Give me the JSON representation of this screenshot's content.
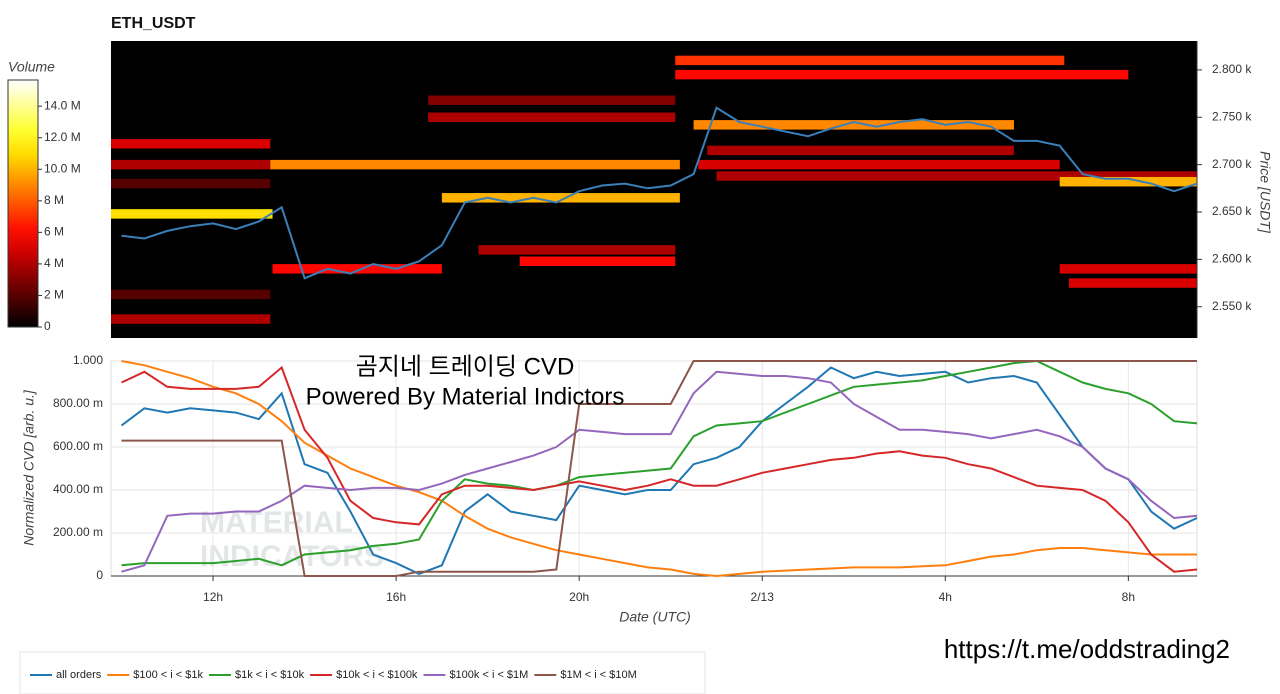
{
  "chart_data": [
    {
      "type": "heatmap",
      "title": "ETH_USDT",
      "y_label": "Price [USDT]",
      "xlim": [
        9.77,
        33.5
      ],
      "ylim": [
        2517,
        2830.5
      ],
      "yticks": [
        {
          "value": 2550,
          "label": "2.550 k"
        },
        {
          "value": 2600,
          "label": "2.600 k"
        },
        {
          "value": 2650,
          "label": "2.650 k"
        },
        {
          "value": 2700,
          "label": "2.700 k"
        },
        {
          "value": 2750,
          "label": "2.750 k"
        },
        {
          "value": 2800,
          "label": "2.800 k"
        }
      ],
      "colorbar": {
        "title": "Volume",
        "lim": [
          0,
          15660000
        ],
        "ticks": [
          0,
          {
            "value": 2000000,
            "label": "2 M"
          },
          {
            "value": 4000000,
            "label": "4 M"
          },
          {
            "value": 6000000,
            "label": "6 M"
          },
          {
            "value": 8000000,
            "label": "8 M"
          },
          {
            "value": 10000000,
            "label": "10.0 M"
          },
          {
            "value": 12000000,
            "label": "12.0 M"
          },
          {
            "value": 14000000,
            "label": "14.0 M"
          }
        ]
      },
      "cells": [
        [
          9.77,
          13.25,
          2722,
          5000000
        ],
        [
          9.77,
          13.25,
          2700,
          4000000
        ],
        [
          13.25,
          22.2,
          2700,
          9000000
        ],
        [
          22.6,
          30.5,
          2700,
          5000000
        ],
        [
          16.7,
          22.1,
          2750,
          4000000
        ],
        [
          22.1,
          30.6,
          2810,
          7000000
        ],
        [
          22.1,
          32.0,
          2795,
          6000000
        ],
        [
          16.7,
          22.1,
          2768,
          3000000
        ],
        [
          17.8,
          22.1,
          2610,
          4000000
        ],
        [
          18.7,
          22.1,
          2598,
          6000000
        ],
        [
          9.77,
          13.25,
          2680,
          2000000
        ],
        [
          9.77,
          13.25,
          2537,
          4000000
        ],
        [
          9.77,
          13.25,
          2563,
          2000000
        ],
        [
          30.5,
          33.5,
          2590,
          5000000
        ],
        [
          30.7,
          33.5,
          2575,
          5000000
        ],
        [
          22.8,
          29.5,
          2715,
          4000000
        ],
        [
          23.0,
          33.5,
          2688,
          4000000
        ],
        [
          9.77,
          13.3,
          2648,
          11000000
        ],
        [
          13.3,
          17.0,
          2590,
          6000000
        ],
        [
          17.0,
          22.2,
          2665,
          10000000
        ],
        [
          22.5,
          29.5,
          2742,
          9000000
        ],
        [
          30.5,
          33.5,
          2682,
          10000000
        ]
      ],
      "x": [
        10,
        10.5,
        11,
        11.5,
        12,
        12.5,
        13,
        13.5,
        14,
        14.5,
        15,
        15.5,
        16,
        16.5,
        17,
        17.5,
        18,
        18.5,
        19,
        19.5,
        20,
        20.5,
        21,
        21.5,
        22,
        22.5,
        23,
        23.5,
        24,
        24.5,
        25,
        25.5,
        26,
        26.5,
        27,
        27.5,
        28,
        28.5,
        29,
        29.5,
        30,
        30.5,
        31,
        31.5,
        32,
        32.5,
        33,
        33.5
      ],
      "color": "#3a7fb8",
      "values": [
        2625,
        2622,
        2630,
        2635,
        2638,
        2632,
        2640,
        2655,
        2580,
        2590,
        2585,
        2595,
        2590,
        2598,
        2615,
        2660,
        2665,
        2660,
        2665,
        2660,
        2672,
        2678,
        2680,
        2675,
        2678,
        2690,
        2760,
        2745,
        2740,
        2735,
        2730,
        2738,
        2745,
        2740,
        2745,
        2748,
        2742,
        2745,
        2740,
        2725,
        2725,
        2720,
        2690,
        2685,
        2685,
        2680,
        2672,
        2680
      ]
    },
    {
      "type": "line",
      "x_label": "Date (UTC)",
      "y_label": "Normalized CVD [arb. u.]",
      "annotations": [
        "곰지네 트레이딩 CVD",
        "Powered By Material Indictors"
      ],
      "watermark": [
        "MATERIAL",
        "INDICATORS"
      ],
      "source": "https://t.me/oddstrading2",
      "grid": true,
      "xlim": [
        9.77,
        33.5
      ],
      "ylim": [
        0,
        1
      ],
      "xticks": [
        {
          "value": 12,
          "label": "12h"
        },
        {
          "value": 16,
          "label": "16h"
        },
        {
          "value": 20,
          "label": "20h"
        },
        {
          "value": 24,
          "label": "2/13"
        },
        {
          "value": 28,
          "label": "4h"
        },
        {
          "value": 32,
          "label": "8h"
        }
      ],
      "yticks": [
        0,
        {
          "value": 0.2,
          "label": "200.00 m"
        },
        {
          "value": 0.4,
          "label": "400.00 m"
        },
        {
          "value": 0.6,
          "label": "600.00 m"
        },
        {
          "value": 0.8,
          "label": "800.00 m"
        },
        {
          "value": 1,
          "label": "1.000"
        }
      ],
      "x": [
        10,
        10.5,
        11,
        11.5,
        12,
        12.5,
        13,
        13.5,
        14,
        14.5,
        15,
        15.5,
        16,
        16.5,
        17,
        17.5,
        18,
        18.5,
        19,
        19.5,
        20,
        20.5,
        21,
        21.5,
        22,
        22.5,
        23,
        23.5,
        24,
        24.5,
        25,
        25.5,
        26,
        26.5,
        27,
        27.5,
        28,
        28.5,
        29,
        29.5,
        30,
        30.5,
        31,
        31.5,
        32,
        32.5,
        33,
        33.5
      ],
      "series": [
        {
          "name": "all orders",
          "color": "#1f77b4",
          "values": [
            0.7,
            0.78,
            0.76,
            0.78,
            0.77,
            0.76,
            0.73,
            0.85,
            0.52,
            0.48,
            0.3,
            0.1,
            0.06,
            0.01,
            0.05,
            0.3,
            0.38,
            0.3,
            0.28,
            0.26,
            0.42,
            0.4,
            0.38,
            0.4,
            0.4,
            0.52,
            0.55,
            0.6,
            0.72,
            0.8,
            0.88,
            0.97,
            0.92,
            0.95,
            0.93,
            0.94,
            0.95,
            0.9,
            0.92,
            0.93,
            0.9,
            0.75,
            0.6,
            0.5,
            0.45,
            0.3,
            0.22,
            0.27
          ]
        },
        {
          "name": "$100 < i < $1k",
          "color": "#ff7f0e",
          "values": [
            1,
            0.98,
            0.95,
            0.92,
            0.88,
            0.85,
            0.8,
            0.72,
            0.62,
            0.56,
            0.5,
            0.46,
            0.42,
            0.39,
            0.35,
            0.28,
            0.22,
            0.18,
            0.15,
            0.12,
            0.1,
            0.08,
            0.06,
            0.04,
            0.03,
            0.01,
            0,
            0.01,
            0.02,
            0.025,
            0.03,
            0.035,
            0.04,
            0.04,
            0.04,
            0.045,
            0.05,
            0.07,
            0.09,
            0.1,
            0.12,
            0.13,
            0.13,
            0.12,
            0.11,
            0.1,
            0.1,
            0.1
          ]
        },
        {
          "name": "$1k < i < $10k",
          "color": "#2ca02c",
          "values": [
            0.05,
            0.06,
            0.06,
            0.06,
            0.06,
            0.07,
            0.08,
            0.05,
            0.1,
            0.11,
            0.12,
            0.14,
            0.15,
            0.17,
            0.35,
            0.45,
            0.43,
            0.42,
            0.4,
            0.42,
            0.46,
            0.47,
            0.48,
            0.49,
            0.5,
            0.65,
            0.7,
            0.71,
            0.72,
            0.76,
            0.8,
            0.84,
            0.88,
            0.89,
            0.9,
            0.91,
            0.93,
            0.95,
            0.97,
            0.99,
            1,
            0.95,
            0.9,
            0.87,
            0.85,
            0.8,
            0.72,
            0.71
          ]
        },
        {
          "name": "$10k < i < $100k",
          "color": "#d62728",
          "values": [
            0.9,
            0.95,
            0.88,
            0.87,
            0.87,
            0.87,
            0.88,
            0.97,
            0.68,
            0.55,
            0.35,
            0.27,
            0.25,
            0.24,
            0.38,
            0.42,
            0.42,
            0.41,
            0.4,
            0.42,
            0.44,
            0.42,
            0.4,
            0.42,
            0.45,
            0.42,
            0.42,
            0.45,
            0.48,
            0.5,
            0.52,
            0.54,
            0.55,
            0.57,
            0.58,
            0.56,
            0.55,
            0.52,
            0.5,
            0.46,
            0.42,
            0.41,
            0.4,
            0.35,
            0.25,
            0.1,
            0.02,
            0.03
          ]
        },
        {
          "name": "$100k < i < $1M",
          "color": "#9467bd",
          "values": [
            0.02,
            0.05,
            0.28,
            0.29,
            0.29,
            0.3,
            0.3,
            0.35,
            0.42,
            0.41,
            0.4,
            0.41,
            0.41,
            0.4,
            0.43,
            0.47,
            0.5,
            0.53,
            0.56,
            0.6,
            0.68,
            0.67,
            0.66,
            0.66,
            0.66,
            0.85,
            0.95,
            0.94,
            0.93,
            0.93,
            0.92,
            0.9,
            0.8,
            0.74,
            0.68,
            0.68,
            0.67,
            0.66,
            0.64,
            0.66,
            0.68,
            0.65,
            0.6,
            0.5,
            0.45,
            0.35,
            0.27,
            0.28
          ]
        },
        {
          "name": "$1M < i < $10M",
          "color": "#8c564b",
          "values": [
            0.63,
            0.63,
            0.63,
            0.63,
            0.63,
            0.63,
            0.63,
            0.63,
            0,
            0,
            0,
            0,
            0,
            0.02,
            0.02,
            0.02,
            0.02,
            0.02,
            0.02,
            0.03,
            0.8,
            0.8,
            0.8,
            0.8,
            0.8,
            1,
            1,
            1,
            1,
            1,
            1,
            1,
            1,
            1,
            1,
            1,
            1,
            1,
            1,
            1,
            1,
            1,
            1,
            1,
            1,
            1,
            1,
            1
          ]
        }
      ]
    }
  ]
}
